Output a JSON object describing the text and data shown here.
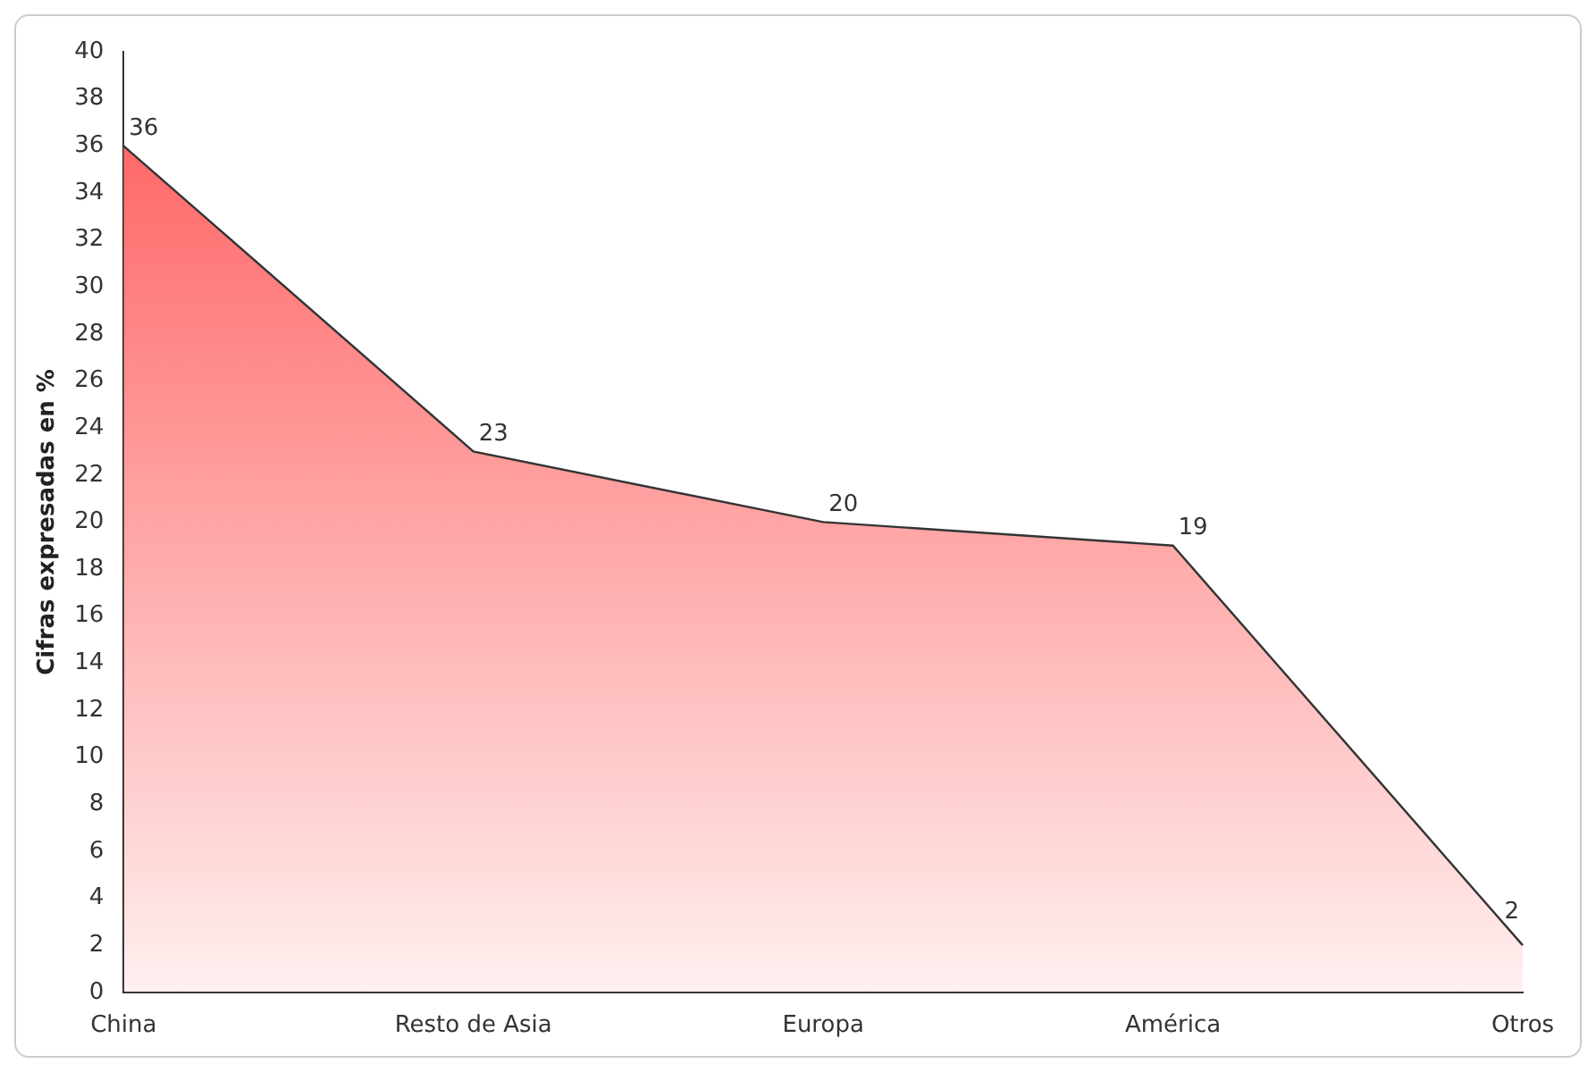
{
  "chart_data": {
    "type": "area",
    "ylabel": "Cifras expresadas en %",
    "categories": [
      "China",
      "Resto de Asia",
      "Europa",
      "América",
      "Otros"
    ],
    "series": [
      {
        "color": "#ff5a5a",
        "values": [
          36,
          23,
          20,
          19,
          2
        ]
      }
    ],
    "ylim": [
      0,
      40
    ],
    "yticks": [
      0,
      2,
      4,
      6,
      8,
      10,
      12,
      14,
      16,
      18,
      20,
      22,
      24,
      26,
      28,
      30,
      32,
      34,
      36,
      38,
      40
    ],
    "grid": false,
    "legend": false,
    "data_labels": true
  }
}
